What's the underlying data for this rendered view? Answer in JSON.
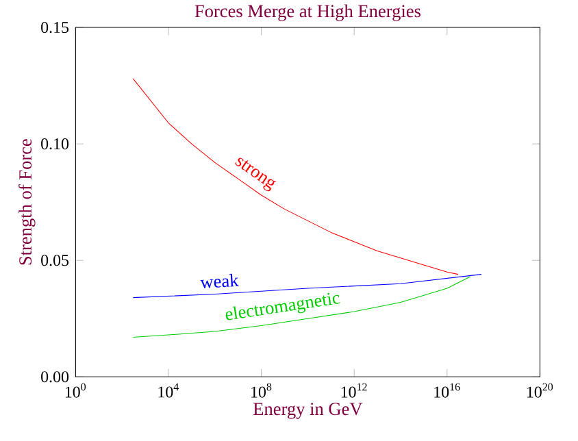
{
  "chart_data": {
    "type": "line",
    "title": "Forces Merge at High Energies",
    "xlabel": "Energy in GeV",
    "ylabel": "Strength of Force",
    "log": "x",
    "xlim": [
      1,
      1e+20
    ],
    "ylim": [
      0,
      0.15
    ],
    "xticks": [
      {
        "value": 1,
        "label": "10$^{0}$"
      },
      {
        "value": 10000.0,
        "label": "10$^{4}$"
      },
      {
        "value": 100000000.0,
        "label": "10$^{8}$"
      },
      {
        "value": 1000000000000.0,
        "label": "10$^{12}$"
      },
      {
        "value": 1e+16,
        "label": "10$^{16}$"
      },
      {
        "value": 1e+20,
        "label": "10$^{20}$"
      }
    ],
    "yticks": [
      {
        "value": 0,
        "label": "0.00"
      },
      {
        "value": 0.05,
        "label": "0.05"
      },
      {
        "value": 0.1,
        "label": "0.10"
      },
      {
        "value": 0.15,
        "label": "0.15"
      }
    ],
    "grid": false,
    "legend": false,
    "series": [
      {
        "name": "strong",
        "color": "#ff0000",
        "x": [
          300,
          10000.0,
          100000.0,
          1000000.0,
          10000000.0,
          100000000.0,
          1000000000.0,
          10000000000.0,
          100000000000.0,
          1000000000000.0,
          10000000000000.0,
          100000000000000.0,
          1000000000000000.0,
          1e+16,
          3e+16
        ],
        "values": [
          0.128,
          0.109,
          0.1,
          0.092,
          0.085,
          0.078,
          0.072,
          0.067,
          0.062,
          0.058,
          0.054,
          0.051,
          0.048,
          0.045,
          0.044
        ]
      },
      {
        "name": "weak",
        "color": "#0000ff",
        "x": [
          300,
          1000000.0,
          10000000000.0,
          100000000000000.0,
          3e+17
        ],
        "values": [
          0.034,
          0.0355,
          0.038,
          0.04,
          0.044
        ]
      },
      {
        "name": "electromagnetic",
        "color": "#00cc00",
        "x": [
          300,
          10000.0,
          1000000.0,
          100000000.0,
          10000000000.0,
          1000000000000.0,
          100000000000000.0,
          1e+16,
          1e+17
        ],
        "values": [
          0.017,
          0.018,
          0.0195,
          0.022,
          0.025,
          0.028,
          0.032,
          0.038,
          0.043
        ]
      }
    ]
  }
}
